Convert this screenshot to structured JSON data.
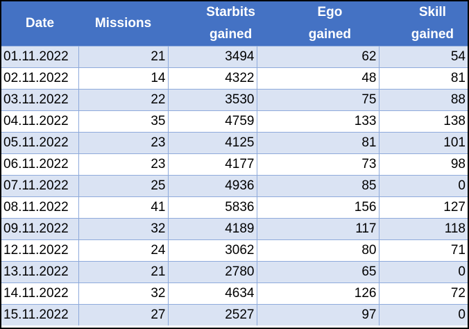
{
  "table": {
    "headers": [
      {
        "line1": "Date",
        "line2": ""
      },
      {
        "line1": "Missions",
        "line2": ""
      },
      {
        "line1": "Starbits",
        "line2": "gained"
      },
      {
        "line1": "Ego",
        "line2": "gained"
      },
      {
        "line1": "Skill",
        "line2": "gained"
      }
    ],
    "rows": [
      [
        "01.11.2022",
        "21",
        "3494",
        "62",
        "54"
      ],
      [
        "02.11.2022",
        "14",
        "4322",
        "48",
        "81"
      ],
      [
        "03.11.2022",
        "22",
        "3530",
        "75",
        "88"
      ],
      [
        "04.11.2022",
        "35",
        "4759",
        "133",
        "138"
      ],
      [
        "05.11.2022",
        "23",
        "4125",
        "81",
        "101"
      ],
      [
        "06.11.2022",
        "23",
        "4177",
        "73",
        "98"
      ],
      [
        "07.11.2022",
        "25",
        "4936",
        "85",
        "0"
      ],
      [
        "08.11.2022",
        "41",
        "5836",
        "156",
        "127"
      ],
      [
        "09.11.2022",
        "32",
        "4189",
        "117",
        "118"
      ],
      [
        "12.11.2022",
        "24",
        "3062",
        "80",
        "71"
      ],
      [
        "13.11.2022",
        "21",
        "2780",
        "65",
        "0"
      ],
      [
        "14.11.2022",
        "32",
        "4634",
        "126",
        "72"
      ],
      [
        "15.11.2022",
        "27",
        "2527",
        "97",
        "0"
      ]
    ],
    "colors": {
      "header_bg": "#4472c4",
      "band_bg": "#dae3f3",
      "grid_line": "#8eaadb"
    }
  }
}
